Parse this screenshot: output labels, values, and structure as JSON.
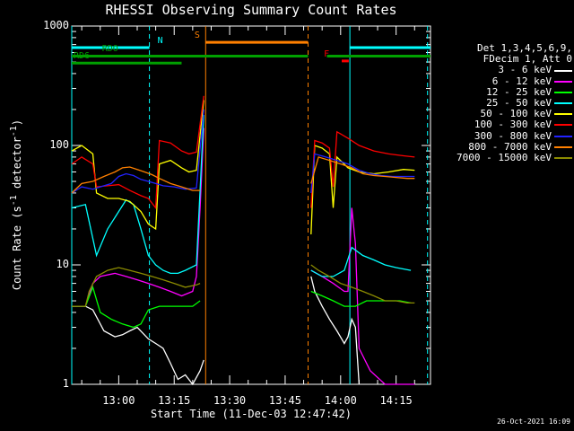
{
  "chart_data": {
    "type": "line",
    "title": "RHESSI Observing Summary Count Rates",
    "xlabel": "Start Time (11-Dec-03 12:47:42)",
    "ylabel_main": "Count Rate (s",
    "ylabel_sup1": "-1",
    "ylabel_mid": " detector",
    "ylabel_sup2": "-1",
    "ylabel_end": ")",
    "yscale": "log",
    "ylim": [
      1,
      1000
    ],
    "y_ticks": [
      "1",
      "10",
      "100",
      "1000"
    ],
    "xlim_minutes": [
      -12.7,
      84.3
    ],
    "x_ticks": [
      {
        "label": "13:00",
        "minute": 0
      },
      {
        "label": "13:15",
        "minute": 15
      },
      {
        "label": "13:30",
        "minute": 30
      },
      {
        "label": "13:45",
        "minute": 45
      },
      {
        "label": "14:00",
        "minute": 60
      },
      {
        "label": "14:15",
        "minute": 75
      }
    ],
    "legend_header": [
      "Det 1,3,4,5,6,9,",
      "FDecim 1, Att 0"
    ],
    "series": [
      {
        "name": "3 - 6 keV",
        "color": "#ffffff",
        "segments": [
          [
            [
              -12.7,
              4.5
            ],
            [
              -9,
              4.5
            ],
            [
              -7,
              4.2
            ],
            [
              -4,
              2.8
            ],
            [
              -1,
              2.5
            ],
            [
              1,
              2.6
            ],
            [
              3,
              2.8
            ],
            [
              5,
              3.0
            ],
            [
              8,
              2.4
            ],
            [
              10,
              2.2
            ],
            [
              12,
              2.0
            ],
            [
              14,
              1.5
            ],
            [
              16,
              1.1
            ],
            [
              18,
              1.2
            ],
            [
              20,
              1.0
            ],
            [
              22,
              1.3
            ],
            [
              23,
              1.6
            ]
          ],
          [
            [
              52,
              8
            ],
            [
              53,
              6
            ],
            [
              55,
              4.5
            ],
            [
              57,
              3.5
            ],
            [
              59,
              2.8
            ],
            [
              61,
              2.2
            ],
            [
              62,
              2.5
            ],
            [
              63,
              3.5
            ],
            [
              64,
              3.0
            ],
            [
              65,
              1.0
            ]
          ]
        ]
      },
      {
        "name": "6 - 12 keV",
        "color": "#ff00ff",
        "segments": [
          [
            [
              -12.7,
              4.5
            ],
            [
              -9,
              4.5
            ],
            [
              -7,
              7
            ],
            [
              -5,
              8
            ],
            [
              -1,
              8.5
            ],
            [
              2,
              8
            ],
            [
              5,
              7.5
            ],
            [
              8,
              7
            ],
            [
              11,
              6.5
            ],
            [
              14,
              6
            ],
            [
              17,
              5.5
            ],
            [
              20,
              6
            ],
            [
              21,
              8
            ],
            [
              22,
              30
            ],
            [
              23,
              140
            ]
          ],
          [
            [
              52,
              9
            ],
            [
              55,
              8
            ],
            [
              58,
              7
            ],
            [
              61,
              6
            ],
            [
              62,
              6
            ],
            [
              63,
              30
            ],
            [
              64,
              15
            ],
            [
              65,
              2
            ],
            [
              68,
              1.3
            ],
            [
              72,
              1.0
            ],
            [
              80,
              1.0
            ]
          ]
        ]
      },
      {
        "name": "12 - 25 keV",
        "color": "#00ff00",
        "segments": [
          [
            [
              -12.7,
              4.5
            ],
            [
              -9,
              4.5
            ],
            [
              -7,
              6.5
            ],
            [
              -5,
              4
            ],
            [
              -2,
              3.5
            ],
            [
              1,
              3.2
            ],
            [
              4,
              3.0
            ],
            [
              6,
              3.2
            ],
            [
              8,
              4.2
            ],
            [
              11,
              4.5
            ],
            [
              14,
              4.5
            ],
            [
              17,
              4.5
            ],
            [
              20,
              4.5
            ],
            [
              22,
              5
            ]
          ],
          [
            [
              52,
              6
            ],
            [
              55,
              5.5
            ],
            [
              58,
              5
            ],
            [
              61,
              4.5
            ],
            [
              64,
              4.5
            ],
            [
              67,
              5
            ],
            [
              70,
              5
            ],
            [
              73,
              5
            ],
            [
              76,
              5
            ],
            [
              79,
              4.8
            ]
          ]
        ]
      },
      {
        "name": "25 - 50 keV",
        "color": "#00ffff",
        "segments": [
          [
            [
              -12.7,
              30
            ],
            [
              -9,
              32
            ],
            [
              -6,
              12
            ],
            [
              -3,
              20
            ],
            [
              0,
              28
            ],
            [
              2,
              35
            ],
            [
              4,
              32
            ],
            [
              6,
              20
            ],
            [
              8,
              12
            ],
            [
              10,
              10
            ],
            [
              12,
              9
            ],
            [
              14,
              8.5
            ],
            [
              16,
              8.5
            ],
            [
              18,
              9
            ],
            [
              21,
              10
            ],
            [
              23,
              180
            ]
          ],
          [
            [
              52,
              9
            ],
            [
              55,
              8
            ],
            [
              58,
              8
            ],
            [
              61,
              9
            ],
            [
              63,
              14
            ],
            [
              66,
              12
            ],
            [
              69,
              11
            ],
            [
              72,
              10
            ],
            [
              75,
              9.5
            ],
            [
              79,
              9
            ]
          ]
        ]
      },
      {
        "name": "50 - 100 keV",
        "color": "#ffff00",
        "segments": [
          [
            [
              -12.7,
              90
            ],
            [
              -10,
              100
            ],
            [
              -7,
              85
            ],
            [
              -6,
              40
            ],
            [
              -3,
              36
            ],
            [
              0,
              36
            ],
            [
              3,
              34
            ],
            [
              6,
              28
            ],
            [
              8,
              22
            ],
            [
              10,
              20
            ],
            [
              11,
              70
            ],
            [
              14,
              75
            ],
            [
              17,
              65
            ],
            [
              19,
              60
            ],
            [
              21,
              62
            ],
            [
              23,
              240
            ]
          ],
          [
            [
              52,
              18
            ],
            [
              53,
              100
            ],
            [
              55,
              95
            ],
            [
              57,
              85
            ],
            [
              58,
              30
            ],
            [
              59,
              80
            ],
            [
              62,
              65
            ],
            [
              65,
              60
            ],
            [
              69,
              58
            ],
            [
              73,
              60
            ],
            [
              77,
              63
            ],
            [
              80,
              62
            ]
          ]
        ]
      },
      {
        "name": "100 - 300 keV",
        "color": "#ff0000",
        "segments": [
          [
            [
              -12.7,
              70
            ],
            [
              -10,
              80
            ],
            [
              -7,
              70
            ],
            [
              -6,
              45
            ],
            [
              -3,
              46
            ],
            [
              0,
              47
            ],
            [
              3,
              42
            ],
            [
              6,
              38
            ],
            [
              8,
              36
            ],
            [
              10,
              30
            ],
            [
              11,
              110
            ],
            [
              14,
              105
            ],
            [
              17,
              90
            ],
            [
              19,
              85
            ],
            [
              21,
              88
            ],
            [
              23,
              260
            ]
          ],
          [
            [
              52,
              30
            ],
            [
              53,
              110
            ],
            [
              55,
              105
            ],
            [
              57,
              95
            ],
            [
              58,
              45
            ],
            [
              59,
              130
            ],
            [
              62,
              115
            ],
            [
              65,
              100
            ],
            [
              69,
              90
            ],
            [
              73,
              85
            ],
            [
              77,
              82
            ],
            [
              80,
              80
            ]
          ]
        ]
      },
      {
        "name": "300 - 800 keV",
        "color": "#2222ff",
        "segments": [
          [
            [
              -12.7,
              40
            ],
            [
              -10,
              45
            ],
            [
              -7,
              43
            ],
            [
              -5,
              45
            ],
            [
              -2,
              48
            ],
            [
              0,
              55
            ],
            [
              2,
              58
            ],
            [
              4,
              56
            ],
            [
              6,
              52
            ],
            [
              8,
              50
            ],
            [
              10,
              48
            ],
            [
              12,
              46
            ],
            [
              15,
              45
            ],
            [
              18,
              43
            ],
            [
              21,
              44
            ],
            [
              23,
              200
            ]
          ],
          [
            [
              52,
              40
            ],
            [
              53,
              85
            ],
            [
              56,
              80
            ],
            [
              59,
              75
            ],
            [
              62,
              70
            ],
            [
              65,
              62
            ],
            [
              68,
              58
            ],
            [
              71,
              56
            ],
            [
              74,
              55
            ],
            [
              77,
              55
            ],
            [
              80,
              55
            ]
          ]
        ]
      },
      {
        "name": "800 - 7000 keV",
        "color": "#ff8000",
        "segments": [
          [
            [
              -12.7,
              40
            ],
            [
              -10,
              48
            ],
            [
              -7,
              50
            ],
            [
              -4,
              55
            ],
            [
              -1,
              60
            ],
            [
              1,
              65
            ],
            [
              3,
              66
            ],
            [
              5,
              63
            ],
            [
              7,
              60
            ],
            [
              9,
              57
            ],
            [
              11,
              53
            ],
            [
              14,
              48
            ],
            [
              17,
              45
            ],
            [
              20,
              42
            ],
            [
              22,
              42
            ]
          ],
          [
            [
              52,
              48
            ],
            [
              54,
              80
            ],
            [
              57,
              75
            ],
            [
              60,
              70
            ],
            [
              63,
              65
            ],
            [
              66,
              58
            ],
            [
              69,
              56
            ],
            [
              72,
              55
            ],
            [
              75,
              54
            ],
            [
              78,
              53
            ],
            [
              80,
              53
            ]
          ]
        ]
      },
      {
        "name": "7000 - 15000 keV",
        "color": "#8b8b00",
        "segments": [
          [
            [
              -12.7,
              4.5
            ],
            [
              -9,
              4.5
            ],
            [
              -8,
              6
            ],
            [
              -6,
              8
            ],
            [
              -3,
              9
            ],
            [
              0,
              9.5
            ],
            [
              3,
              9
            ],
            [
              6,
              8.5
            ],
            [
              9,
              8
            ],
            [
              12,
              7.5
            ],
            [
              15,
              7
            ],
            [
              18,
              6.5
            ],
            [
              21,
              6.8
            ],
            [
              22,
              7
            ]
          ],
          [
            [
              52,
              10
            ],
            [
              54,
              9
            ],
            [
              57,
              8
            ],
            [
              60,
              7
            ],
            [
              63,
              6.5
            ],
            [
              66,
              6
            ],
            [
              69,
              5.5
            ],
            [
              72,
              5
            ],
            [
              75,
              5
            ],
            [
              78,
              4.8
            ],
            [
              80,
              4.8
            ]
          ]
        ]
      }
    ],
    "flags": [
      {
        "label": "N",
        "color": "#00ffff",
        "y_value": 660,
        "start": -12.7,
        "end": 8.3,
        "label_at": 10
      },
      {
        "label": "",
        "color": "#00ffff",
        "y_value": 660,
        "start": 62.5,
        "end": 84.3,
        "label_at": null
      },
      {
        "label": "S",
        "color": "#ff8000",
        "y_value": 730,
        "start": 23.5,
        "end": 51.2,
        "label_at": 20
      },
      {
        "label": "F",
        "color": "#ff0000",
        "y_value": 510,
        "start": 60.3,
        "end": 62.2,
        "label_at": 55
      },
      {
        "label": "RDO",
        "color": "#00a000",
        "y_value": 560,
        "start": -12.7,
        "end": 84.3,
        "gaps": [
          [
            51.2,
            56.3
          ]
        ],
        "label_at": -5
      },
      {
        "label": "RD6",
        "color": "#00a000",
        "y_value": 490,
        "start": -12.7,
        "end": 17.0,
        "label_at": -12.7
      }
    ],
    "vlines": [
      {
        "minute": -12.7,
        "color": "#00ffff",
        "style": "solid"
      },
      {
        "minute": 8.3,
        "color": "#00ffff",
        "style": "dash"
      },
      {
        "minute": 23.5,
        "color": "#ff8000",
        "style": "solid"
      },
      {
        "minute": 51.2,
        "color": "#ff8000",
        "style": "dash"
      },
      {
        "minute": 62.5,
        "color": "#00ffff",
        "style": "solid"
      },
      {
        "minute": 83.5,
        "color": "#00ffff",
        "style": "dash"
      }
    ]
  },
  "timestamp": "26-Oct-2021 16:09"
}
